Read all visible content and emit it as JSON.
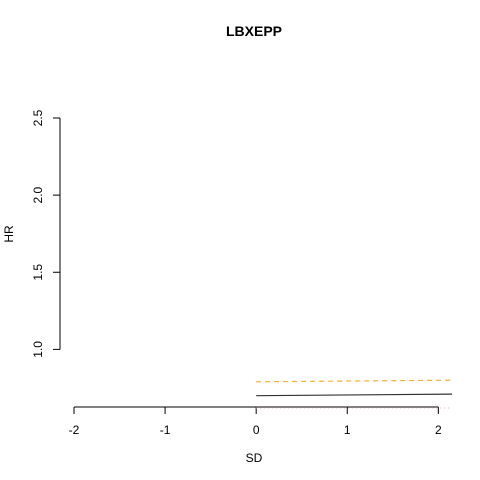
{
  "chart_data": {
    "type": "line",
    "title": "LBXEPP",
    "xlabel": "SD",
    "ylabel": "HR",
    "xlim": [
      -2,
      2.15
    ],
    "ylim": [
      0.62,
      2.5
    ],
    "x_ticks": [
      -2,
      -1,
      0,
      1,
      2
    ],
    "x_tick_labels": [
      "-2",
      "-1",
      "0",
      "1",
      "2"
    ],
    "y_ticks": [
      1.0,
      1.5,
      2.0,
      2.5
    ],
    "y_tick_labels": [
      "1.0",
      "1.5",
      "2.0",
      "2.5"
    ],
    "grid": false,
    "legend": "none",
    "series": [
      {
        "style": "dashed",
        "color": "#f0b030",
        "x": [
          0,
          2.15
        ],
        "y": [
          0.79,
          0.8
        ]
      },
      {
        "style": "solid",
        "color": "#333333",
        "x": [
          0,
          2.15
        ],
        "y": [
          0.7,
          0.71
        ]
      },
      {
        "style": "dotted",
        "color": "#e8b8b8",
        "x": [
          0,
          2.15
        ],
        "y": [
          0.62,
          0.62
        ]
      }
    ]
  }
}
